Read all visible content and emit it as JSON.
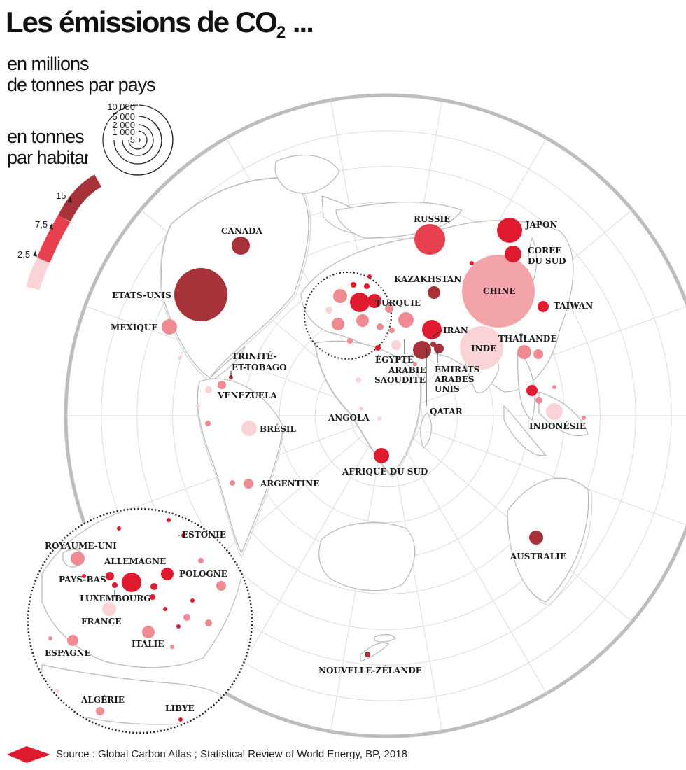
{
  "title": {
    "main": "Les émissions de CO",
    "subscript": "2",
    "suffix": " ..."
  },
  "legend": {
    "size_label": [
      "en millions",
      "de tonnes par pays"
    ],
    "size_values": [
      "10 000",
      "5 000",
      "2 000",
      "1 000",
      "5"
    ],
    "color_label": [
      "en tonnes",
      "par habitant"
    ],
    "color_values": [
      "15",
      "7,5",
      "2,5"
    ],
    "colors": {
      "dark": "#a8323a",
      "strong": "#e01b2f",
      "medium": "#f08a92",
      "light": "#f8cdd0"
    }
  },
  "countries": [
    {
      "name": "CANADA"
    },
    {
      "name": "ETATS-UNIS"
    },
    {
      "name": "MEXIQUE"
    },
    {
      "name": "TRINITÉ-ET-TOBAGO",
      "lines": [
        "TRINITÉ-",
        "ET-TOBAGO"
      ]
    },
    {
      "name": "VENEZUELA"
    },
    {
      "name": "BRÉSIL"
    },
    {
      "name": "ARGENTINE"
    },
    {
      "name": "RUSSIE"
    },
    {
      "name": "JAPON"
    },
    {
      "name": "CORÉE DU SUD",
      "lines": [
        "CORÉE",
        "DU SUD"
      ]
    },
    {
      "name": "KAZAKHSTAN"
    },
    {
      "name": "CHINE"
    },
    {
      "name": "TAIWAN"
    },
    {
      "name": "TURQUIE"
    },
    {
      "name": "IRAN"
    },
    {
      "name": "INDE"
    },
    {
      "name": "THAÏLANDE"
    },
    {
      "name": "ÉGYPTE"
    },
    {
      "name": "ARABIE SAOUDITE",
      "lines": [
        "ARABIE",
        "SAOUDITE"
      ]
    },
    {
      "name": "ÉMIRATS ARABES UNIS",
      "lines": [
        "ÉMIRATS",
        "ARABES",
        "UNIS"
      ]
    },
    {
      "name": "QATAR"
    },
    {
      "name": "ANGOLA"
    },
    {
      "name": "AFRIQUE DU SUD"
    },
    {
      "name": "INDONÉSIE"
    },
    {
      "name": "AUSTRALIE"
    },
    {
      "name": "NOUVELLE-ZÉLANDE"
    },
    {
      "name": "ROYAUME-UNI"
    },
    {
      "name": "ALLEMAGNE"
    },
    {
      "name": "PAYS-BAS"
    },
    {
      "name": "POLOGNE"
    },
    {
      "name": "ESTONIE"
    },
    {
      "name": "LUXEMBOURG"
    },
    {
      "name": "FRANCE"
    },
    {
      "name": "ITALIE"
    },
    {
      "name": "ESPAGNE"
    },
    {
      "name": "ALGÉRIE"
    },
    {
      "name": "LIBYE"
    }
  ],
  "source": "Source : Global Carbon Atlas ; Statistical Review of World Energy, BP, 2018"
}
